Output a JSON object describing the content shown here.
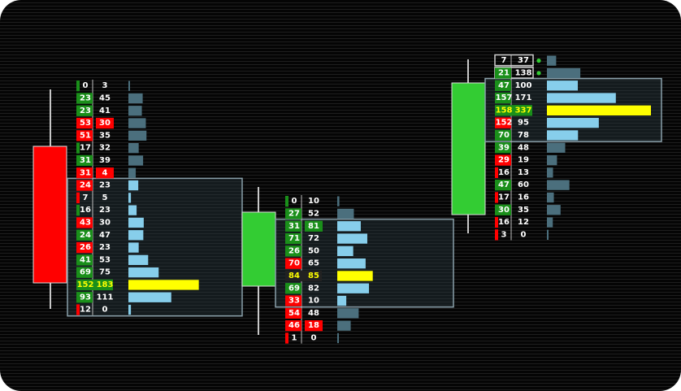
{
  "chart_data": {
    "type": "footprint",
    "colors": {
      "bearish_candle": "#ff0000",
      "bullish_candle": "#33cc33",
      "bid_green": "#1a8f1a",
      "bid_red": "#ff0000",
      "volume_bar_value_area": "#87ceeb",
      "volume_bar_outside": "#4b6f7d",
      "poc_highlight": "#ffff00",
      "value_area_box": "#8aa0aa"
    },
    "bars": [
      {
        "candle": "bearish",
        "rows": [
          {
            "bid": 0,
            "ask": 3,
            "vol": 3,
            "bid_color": "green",
            "ask_color": "none",
            "value_area": false
          },
          {
            "bid": 23,
            "ask": 45,
            "vol": 68,
            "bid_color": "green",
            "ask_color": "none",
            "value_area": false
          },
          {
            "bid": 23,
            "ask": 41,
            "vol": 64,
            "bid_color": "green",
            "ask_color": "none",
            "value_area": false
          },
          {
            "bid": 53,
            "ask": 30,
            "vol": 83,
            "bid_color": "red",
            "ask_color": "red",
            "value_area": false
          },
          {
            "bid": 51,
            "ask": 35,
            "vol": 86,
            "bid_color": "red",
            "ask_color": "none",
            "value_area": false
          },
          {
            "bid": 17,
            "ask": 32,
            "vol": 49,
            "bid_color": "green",
            "ask_color": "none",
            "value_area": false
          },
          {
            "bid": 31,
            "ask": 39,
            "vol": 70,
            "bid_color": "green",
            "ask_color": "none",
            "value_area": false
          },
          {
            "bid": 31,
            "ask": 4,
            "vol": 35,
            "bid_color": "red",
            "ask_color": "red",
            "value_area": false
          },
          {
            "bid": 24,
            "ask": 23,
            "vol": 47,
            "bid_color": "red",
            "ask_color": "none",
            "value_area": true
          },
          {
            "bid": 7,
            "ask": 5,
            "vol": 12,
            "bid_color": "red",
            "ask_color": "none",
            "value_area": true
          },
          {
            "bid": 16,
            "ask": 23,
            "vol": 39,
            "bid_color": "green",
            "ask_color": "none",
            "value_area": true
          },
          {
            "bid": 43,
            "ask": 30,
            "vol": 73,
            "bid_color": "red",
            "ask_color": "none",
            "value_area": true
          },
          {
            "bid": 24,
            "ask": 47,
            "vol": 71,
            "bid_color": "green",
            "ask_color": "none",
            "value_area": true
          },
          {
            "bid": 26,
            "ask": 23,
            "vol": 49,
            "bid_color": "red",
            "ask_color": "none",
            "value_area": true
          },
          {
            "bid": 41,
            "ask": 53,
            "vol": 94,
            "bid_color": "green",
            "ask_color": "none",
            "value_area": true
          },
          {
            "bid": 69,
            "ask": 75,
            "vol": 144,
            "bid_color": "green",
            "ask_color": "none",
            "value_area": true
          },
          {
            "bid": 152,
            "ask": 183,
            "vol": 335,
            "bid_color": "green",
            "ask_color": "none",
            "value_area": true,
            "poc": true
          },
          {
            "bid": 93,
            "ask": 111,
            "vol": 204,
            "bid_color": "green",
            "ask_color": "none",
            "value_area": true
          },
          {
            "bid": 12,
            "ask": 0,
            "vol": 12,
            "bid_color": "red",
            "ask_color": "none",
            "value_area": true
          }
        ]
      },
      {
        "candle": "bullish",
        "rows": [
          {
            "bid": 0,
            "ask": 10,
            "vol": 10,
            "bid_color": "green",
            "ask_color": "none",
            "value_area": false
          },
          {
            "bid": 27,
            "ask": 52,
            "vol": 79,
            "bid_color": "green",
            "ask_color": "none",
            "value_area": false
          },
          {
            "bid": 31,
            "ask": 81,
            "vol": 112,
            "bid_color": "green",
            "ask_color": "green",
            "value_area": true
          },
          {
            "bid": 71,
            "ask": 72,
            "vol": 143,
            "bid_color": "green",
            "ask_color": "none",
            "value_area": true
          },
          {
            "bid": 26,
            "ask": 50,
            "vol": 76,
            "bid_color": "green",
            "ask_color": "none",
            "value_area": true
          },
          {
            "bid": 70,
            "ask": 65,
            "vol": 135,
            "bid_color": "red",
            "ask_color": "none",
            "value_area": true
          },
          {
            "bid": 84,
            "ask": 85,
            "vol": 169,
            "bid_color": "none",
            "ask_color": "none",
            "value_area": true,
            "poc": true
          },
          {
            "bid": 69,
            "ask": 82,
            "vol": 151,
            "bid_color": "green",
            "ask_color": "none",
            "value_area": true
          },
          {
            "bid": 33,
            "ask": 10,
            "vol": 43,
            "bid_color": "red",
            "ask_color": "none",
            "value_area": true
          },
          {
            "bid": 54,
            "ask": 48,
            "vol": 102,
            "bid_color": "red",
            "ask_color": "none",
            "value_area": false
          },
          {
            "bid": 46,
            "ask": 18,
            "vol": 64,
            "bid_color": "red",
            "ask_color": "red",
            "value_area": false
          },
          {
            "bid": 1,
            "ask": 0,
            "vol": 1,
            "bid_color": "red",
            "ask_color": "none",
            "value_area": false
          }
        ]
      },
      {
        "candle": "bullish",
        "rows": [
          {
            "bid": 7,
            "ask": 37,
            "vol": 44,
            "bid_color": "none",
            "ask_color": "none",
            "value_area": false,
            "outlined": true,
            "marker": true
          },
          {
            "bid": 21,
            "ask": 138,
            "vol": 159,
            "bid_color": "green",
            "ask_color": "none",
            "value_area": false,
            "outlined": true,
            "marker": true
          },
          {
            "bid": 47,
            "ask": 100,
            "vol": 147,
            "bid_color": "green",
            "ask_color": "none",
            "value_area": true
          },
          {
            "bid": 157,
            "ask": 171,
            "vol": 328,
            "bid_color": "green",
            "ask_color": "none",
            "value_area": true
          },
          {
            "bid": 158,
            "ask": 337,
            "vol": 495,
            "bid_color": "green",
            "ask_color": "green",
            "value_area": true,
            "poc": true
          },
          {
            "bid": 152,
            "ask": 95,
            "vol": 247,
            "bid_color": "red",
            "ask_color": "none",
            "value_area": true
          },
          {
            "bid": 70,
            "ask": 78,
            "vol": 148,
            "bid_color": "green",
            "ask_color": "none",
            "value_area": true
          },
          {
            "bid": 39,
            "ask": 48,
            "vol": 87,
            "bid_color": "green",
            "ask_color": "none",
            "value_area": false
          },
          {
            "bid": 29,
            "ask": 19,
            "vol": 48,
            "bid_color": "red",
            "ask_color": "none",
            "value_area": false
          },
          {
            "bid": 16,
            "ask": 13,
            "vol": 29,
            "bid_color": "red",
            "ask_color": "none",
            "value_area": false
          },
          {
            "bid": 47,
            "ask": 60,
            "vol": 107,
            "bid_color": "green",
            "ask_color": "none",
            "value_area": false
          },
          {
            "bid": 17,
            "ask": 16,
            "vol": 33,
            "bid_color": "red",
            "ask_color": "none",
            "value_area": false
          },
          {
            "bid": 30,
            "ask": 35,
            "vol": 65,
            "bid_color": "green",
            "ask_color": "none",
            "value_area": false
          },
          {
            "bid": 16,
            "ask": 12,
            "vol": 28,
            "bid_color": "red",
            "ask_color": "none",
            "value_area": false
          },
          {
            "bid": 3,
            "ask": 0,
            "vol": 3,
            "bid_color": "red",
            "ask_color": "none",
            "value_area": false
          }
        ]
      }
    ]
  }
}
